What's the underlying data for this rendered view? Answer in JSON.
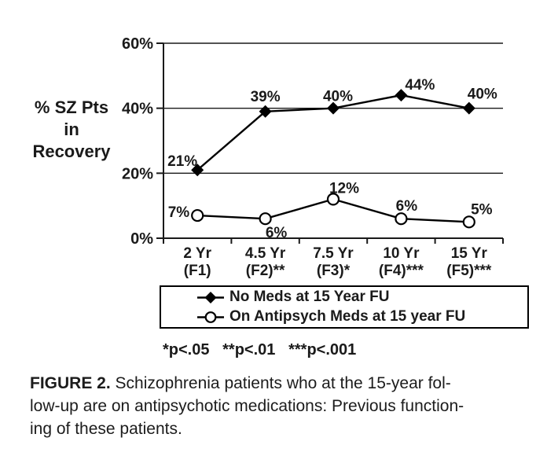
{
  "chart_data": {
    "type": "line",
    "title": "",
    "ylabel": "% SZ Pts in Recovery",
    "ylabel_lines": [
      "% SZ Pts",
      "in",
      "Recovery"
    ],
    "xlabel": "",
    "ylim": [
      0,
      60
    ],
    "y_ticks": [
      0,
      20,
      40,
      60
    ],
    "y_tick_labels": [
      "0%",
      "20%",
      "40%",
      "60%"
    ],
    "categories": [
      "2 Yr (F1)",
      "4.5 Yr (F2)**",
      "7.5 Yr (F3)*",
      "10 Yr (F4)***",
      "15 Yr (F5)***"
    ],
    "x_tick_labels": [
      {
        "top": "2 Yr",
        "bottom": "(F1)"
      },
      {
        "top": "4.5 Yr",
        "bottom": "(F2)**"
      },
      {
        "top": "7.5 Yr",
        "bottom": "(F3)*"
      },
      {
        "top": "10 Yr",
        "bottom": "(F4)***"
      },
      {
        "top": "15 Yr",
        "bottom": "(F5)***"
      }
    ],
    "grid": "horizontal-only",
    "legend_position": "below",
    "series": [
      {
        "name": "No Meds at 15 Year FU",
        "marker": "filled-diamond",
        "color": "#000000",
        "values": [
          21,
          39,
          40,
          44,
          40
        ],
        "data_labels": [
          "21%",
          "39%",
          "40%",
          "44%",
          "40%"
        ]
      },
      {
        "name": "On Antipsych Meds at 15 year FU",
        "marker": "open-circle",
        "color": "#000000",
        "values": [
          7,
          6,
          12,
          6,
          5
        ],
        "data_labels": [
          "7%",
          "6%",
          "12%",
          "6%",
          "5%"
        ]
      }
    ]
  },
  "significance_note": "*p<.05   **p<.01   ***p<.001",
  "caption": {
    "label": "FIGURE 2.",
    "lines": [
      " Schizophrenia patients who at the 15-year fol-",
      "low-up are on antipsychotic medications: Previous function-",
      "ing of these patients."
    ]
  },
  "colors": {
    "foreground": "#000000",
    "background": "#ffffff"
  }
}
